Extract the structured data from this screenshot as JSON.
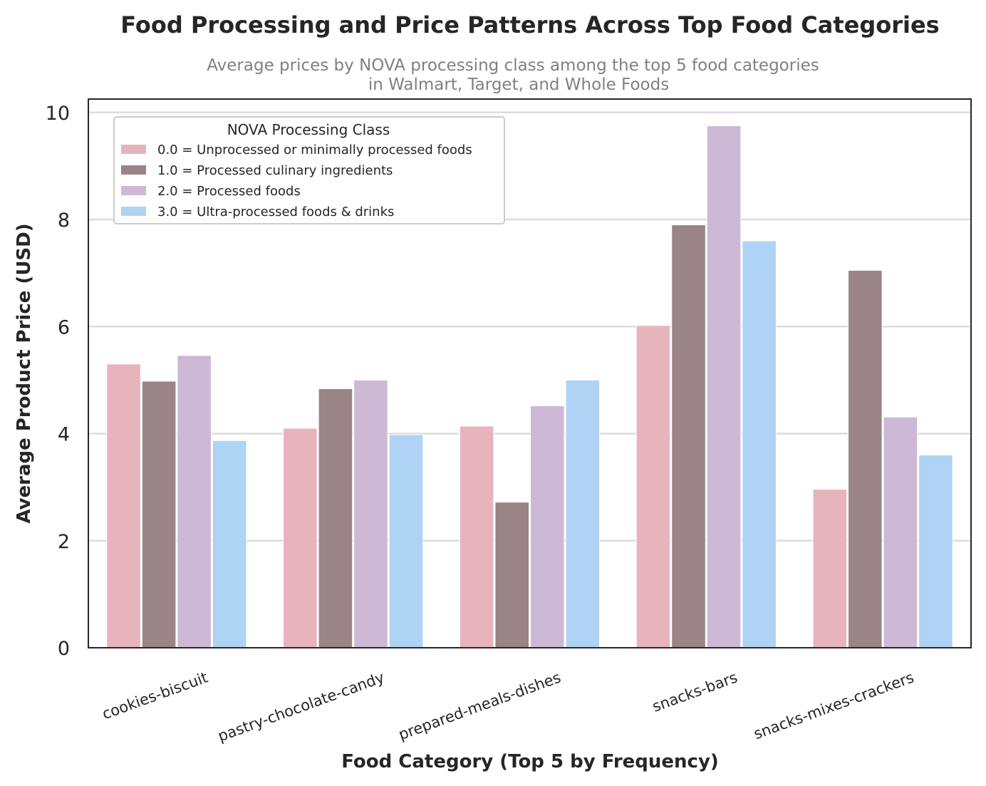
{
  "chart_data": {
    "type": "bar",
    "title": "Food Processing and Price Patterns Across Top Food Categories",
    "subtitle_lines": [
      "Average prices by NOVA processing class among the top 5 food categories",
      "in Walmart, Target, and Whole Foods"
    ],
    "xlabel": "Food Category (Top 5 by Frequency)",
    "ylabel": "Average Product Price (USD)",
    "ylim": [
      0,
      10.25
    ],
    "yticks": [
      "0",
      "2",
      "4",
      "6",
      "8",
      "10"
    ],
    "grid": "horizontal",
    "legend_title": "NOVA Processing Class",
    "legend_position": "top-left",
    "categories": [
      "cookies-biscuit",
      "pastry-chocolate-candy",
      "prepared-meals-dishes",
      "snacks-bars",
      "snacks-mixes-crackers"
    ],
    "series": [
      {
        "name": "0.0 = Unprocessed or minimally processed foods",
        "color": "#E8B4BC",
        "values": [
          5.3,
          4.1,
          4.14,
          6.02,
          2.96
        ]
      },
      {
        "name": "1.0 = Processed culinary ingredients",
        "color": "#9A8487",
        "values": [
          4.98,
          4.84,
          2.72,
          7.9,
          7.05
        ]
      },
      {
        "name": "2.0 = Processed foods",
        "color": "#CDB9D6",
        "values": [
          5.46,
          5.0,
          4.52,
          9.75,
          4.31
        ]
      },
      {
        "name": "3.0 = Ultra-processed foods & drinks",
        "color": "#AED3F4",
        "values": [
          3.87,
          3.98,
          5.0,
          7.6,
          3.6
        ]
      }
    ]
  }
}
